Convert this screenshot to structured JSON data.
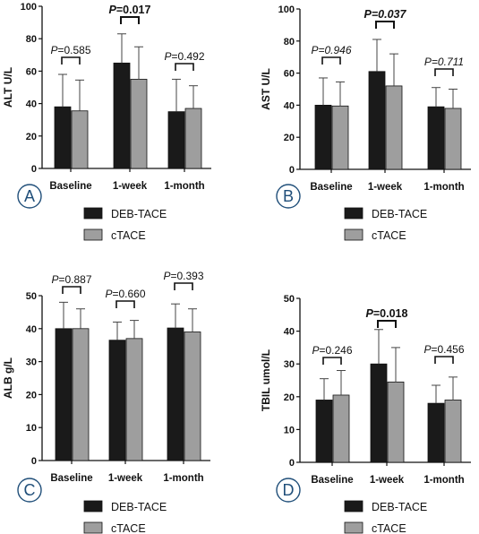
{
  "colors": {
    "deb": "#1a1a1a",
    "ctace": "#9e9e9e",
    "accent": "#1f4e79"
  },
  "chart_data": [
    {
      "type": "bar",
      "panel": "A",
      "ylabel": "ALT U/L",
      "ylim": [
        0,
        100
      ],
      "yticks": [
        "0",
        "20",
        "40",
        "60",
        "80",
        "100"
      ],
      "categories": [
        "Baseline",
        "1-week",
        "1-month"
      ],
      "series": [
        {
          "name": "DEB-TACE",
          "values": [
            38,
            65,
            35
          ],
          "errors": [
            20,
            18,
            20
          ]
        },
        {
          "name": "cTACE",
          "values": [
            35.5,
            55,
            37
          ],
          "errors": [
            19,
            20,
            14
          ]
        }
      ],
      "annotations": [
        {
          "label": "P",
          "text": "=0.585",
          "bold": false,
          "italic_value": false
        },
        {
          "label": "P",
          "text": "=0.017",
          "bold": true,
          "italic_value": false
        },
        {
          "label": "P",
          "text": "=0.492",
          "bold": false,
          "italic_value": false
        }
      ]
    },
    {
      "type": "bar",
      "panel": "B",
      "ylabel": "AST U/L",
      "ylim": [
        0,
        100
      ],
      "yticks": [
        "0",
        "20",
        "40",
        "60",
        "80",
        "100"
      ],
      "categories": [
        "Baseline",
        "1-week",
        "1-month"
      ],
      "series": [
        {
          "name": "DEB-TACE",
          "values": [
            40,
            61,
            39
          ],
          "errors": [
            17,
            20,
            12
          ]
        },
        {
          "name": "cTACE",
          "values": [
            39.5,
            52,
            38
          ],
          "errors": [
            15,
            20,
            12
          ]
        }
      ],
      "annotations": [
        {
          "label": "P",
          "text": "=0.946",
          "bold": false,
          "italic_value": true
        },
        {
          "label": "P",
          "text": "=0.037",
          "bold": true,
          "italic_value": true
        },
        {
          "label": "P",
          "text": "=0.711",
          "bold": false,
          "italic_value": true
        }
      ]
    },
    {
      "type": "bar",
      "panel": "C",
      "ylabel": "ALB g/L",
      "ylim": [
        0,
        50
      ],
      "yticks": [
        "0",
        "10",
        "20",
        "30",
        "40",
        "50"
      ],
      "categories": [
        "Baseline",
        "1-week",
        "1-month"
      ],
      "series": [
        {
          "name": "DEB-TACE",
          "values": [
            40,
            36.5,
            40.2
          ],
          "errors": [
            8,
            5.5,
            7.3
          ]
        },
        {
          "name": "cTACE",
          "values": [
            40,
            37,
            39
          ],
          "errors": [
            6,
            5.5,
            7
          ]
        }
      ],
      "annotations": [
        {
          "label": "P",
          "text": "=0.887",
          "bold": false,
          "italic_value": false
        },
        {
          "label": "P",
          "text": "=0.660",
          "bold": false,
          "italic_value": false
        },
        {
          "label": "P",
          "text": "=0.393",
          "bold": false,
          "italic_value": false
        }
      ]
    },
    {
      "type": "bar",
      "panel": "D",
      "ylabel": "TBIL umol/L",
      "ylim": [
        0,
        50
      ],
      "yticks": [
        "0",
        "10",
        "20",
        "30",
        "40",
        "50"
      ],
      "categories": [
        "Baseline",
        "1-week",
        "1-month"
      ],
      "series": [
        {
          "name": "DEB-TACE",
          "values": [
            19,
            30,
            18
          ],
          "errors": [
            6.5,
            10.5,
            5.5
          ]
        },
        {
          "name": "cTACE",
          "values": [
            20.5,
            24.5,
            19
          ],
          "errors": [
            7.5,
            10.5,
            7
          ]
        }
      ],
      "annotations": [
        {
          "label": "P",
          "text": "=0.246",
          "bold": false,
          "italic_value": false
        },
        {
          "label": "P",
          "text": "=0.018",
          "bold": true,
          "italic_value": false
        },
        {
          "label": "P",
          "text": "=0.456",
          "bold": false,
          "italic_value": false
        }
      ]
    }
  ],
  "legend": [
    "DEB-TACE",
    "cTACE"
  ]
}
